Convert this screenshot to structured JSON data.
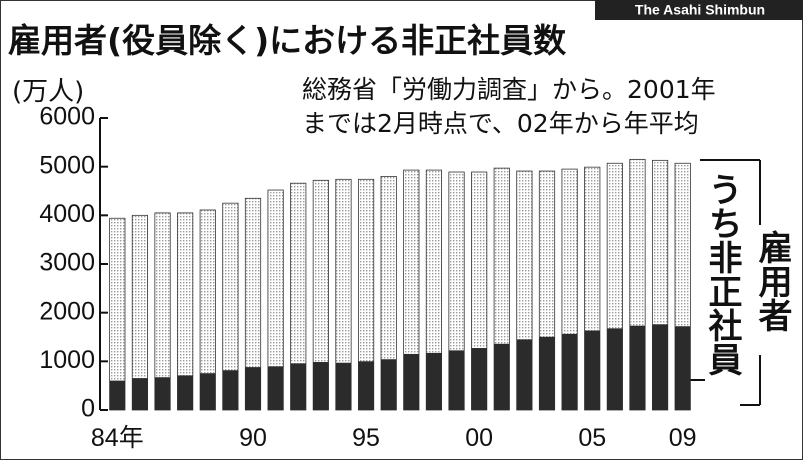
{
  "chart_data": {
    "type": "bar",
    "title": "雇用者(役員除く)における非正社員数",
    "credit": "The Asahi Shimbun",
    "unit": "(万人)",
    "notes": [
      "総務省「労働力調査」から。2001年",
      "までは2月時点で、02年から年平均"
    ],
    "categories": [
      "84年",
      null,
      null,
      null,
      null,
      null,
      "90",
      null,
      null,
      null,
      null,
      "95",
      null,
      null,
      null,
      null,
      "00",
      null,
      null,
      null,
      null,
      "05",
      null,
      null,
      null,
      "09"
    ],
    "series": [
      {
        "name": "雇用者",
        "color": "#9a9a9a",
        "values": [
          3940,
          4000,
          4050,
          4050,
          4110,
          4250,
          4350,
          4520,
          4660,
          4720,
          4740,
          4740,
          4800,
          4930,
          4930,
          4890,
          4890,
          4970,
          4910,
          4910,
          4950,
          4990,
          5070,
          5150,
          5130,
          5070
        ]
      },
      {
        "name": "うち非正社員",
        "color": "#2b2b2b",
        "values": [
          604,
          655,
          673,
          711,
          755,
          817,
          881,
          897,
          958,
          986,
          971,
          1001,
          1043,
          1152,
          1173,
          1225,
          1273,
          1360,
          1451,
          1504,
          1564,
          1633,
          1677,
          1732,
          1760,
          1721
        ]
      }
    ],
    "ylim": [
      0,
      6000
    ],
    "yticks": [
      0,
      1000,
      2000,
      3000,
      4000,
      5000,
      6000
    ]
  }
}
